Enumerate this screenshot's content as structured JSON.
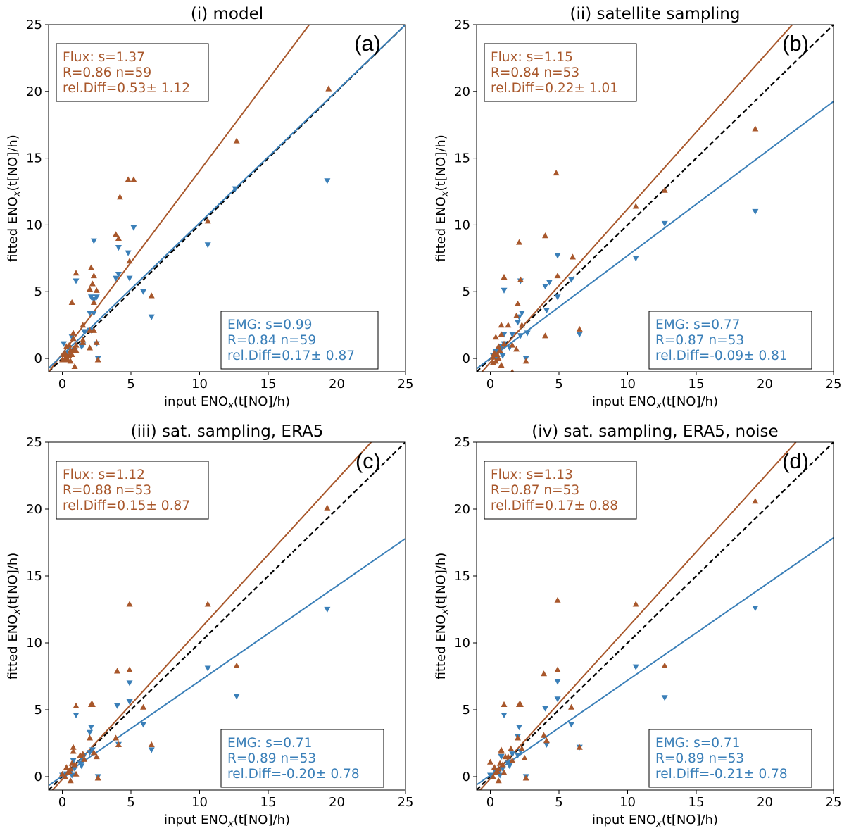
{
  "colors": {
    "flux": "#a8572b",
    "emg": "#3a7fb8",
    "identity": "#000000"
  },
  "chart_data": [
    {
      "type": "scatter",
      "letter": "(a)",
      "title": "(i) model",
      "xlabel": "input ENO",
      "xlabel_sub": "x",
      "xlabel_unit": "(t[NO]/h)",
      "ylabel": "fitted ENO",
      "ylabel_sub": "x",
      "ylabel_unit": "(t[NO]/h)",
      "xlim": [
        -1,
        25
      ],
      "ylim": [
        -1,
        25
      ],
      "xticks": [
        0,
        5,
        10,
        15,
        20,
        25
      ],
      "yticks": [
        0,
        5,
        10,
        15,
        20,
        25
      ],
      "grid": false,
      "flux": {
        "label_lines": [
          "Flux: s=1.37",
          "R=0.86 n=59",
          "rel.Diff=0.53± 1.12"
        ],
        "slope": 1.37,
        "intercept": 0.35,
        "points": [
          [
            19.4,
            20.2
          ],
          [
            12.7,
            16.3
          ],
          [
            4.8,
            13.4
          ],
          [
            5.2,
            13.4
          ],
          [
            4.2,
            12.1
          ],
          [
            10.6,
            10.3
          ],
          [
            3.9,
            9.3
          ],
          [
            4.1,
            9.0
          ],
          [
            4.9,
            7.3
          ],
          [
            2.1,
            6.8
          ],
          [
            1.0,
            6.4
          ],
          [
            2.3,
            6.2
          ],
          [
            2.2,
            5.6
          ],
          [
            2.5,
            5.1
          ],
          [
            2.0,
            5.2
          ],
          [
            0.7,
            4.2
          ],
          [
            2.3,
            4.2
          ],
          [
            6.5,
            4.7
          ],
          [
            1.5,
            2.5
          ],
          [
            2.0,
            2.1
          ],
          [
            2.3,
            2.1
          ],
          [
            2.5,
            1.2
          ],
          [
            2.0,
            0.8
          ],
          [
            0.8,
            1.9
          ],
          [
            0.8,
            1.5
          ],
          [
            1.5,
            1.4
          ],
          [
            1.5,
            1.2
          ],
          [
            0.5,
            1.0
          ],
          [
            0.3,
            0.9
          ],
          [
            0.6,
            0.6
          ],
          [
            0.8,
            0.6
          ],
          [
            1.0,
            0.6
          ],
          [
            0.7,
            0.3
          ],
          [
            0.1,
            0.3
          ],
          [
            0.2,
            0.0
          ],
          [
            0.3,
            0.1
          ],
          [
            0.0,
            -0.1
          ],
          [
            0.6,
            -0.2
          ],
          [
            0.9,
            -0.6
          ],
          [
            0.4,
            -0.1
          ],
          [
            2.6,
            -0.1
          ],
          [
            0.2,
            0.4
          ],
          [
            0.5,
            0.2
          ],
          [
            0.9,
            0.8
          ],
          [
            1.0,
            1.0
          ]
        ]
      },
      "emg": {
        "label_lines": [
          "EMG: s=0.99",
          "R=0.84 n=59",
          "rel.Diff=0.17± 0.87"
        ],
        "slope": 0.99,
        "intercept": 0.25,
        "points": [
          [
            19.3,
            13.3
          ],
          [
            12.6,
            12.7
          ],
          [
            10.6,
            8.5
          ],
          [
            5.2,
            9.8
          ],
          [
            2.3,
            8.8
          ],
          [
            4.1,
            8.3
          ],
          [
            4.8,
            7.9
          ],
          [
            1.0,
            5.8
          ],
          [
            3.9,
            6.0
          ],
          [
            4.1,
            6.3
          ],
          [
            4.9,
            6.0
          ],
          [
            5.9,
            5.0
          ],
          [
            6.5,
            3.1
          ],
          [
            2.1,
            4.6
          ],
          [
            2.5,
            4.6
          ],
          [
            2.3,
            4.4
          ],
          [
            2.0,
            3.4
          ],
          [
            2.3,
            3.4
          ],
          [
            1.6,
            2.0
          ],
          [
            2.0,
            2.1
          ],
          [
            2.1,
            2.1
          ],
          [
            1.5,
            1.0
          ],
          [
            1.4,
            0.9
          ],
          [
            2.5,
            1.1
          ],
          [
            0.7,
            1.6
          ],
          [
            0.1,
            1.1
          ],
          [
            0.5,
            0.8
          ],
          [
            0.9,
            0.6
          ],
          [
            0.3,
            0.4
          ],
          [
            0.2,
            0.2
          ],
          [
            2.6,
            0.0
          ],
          [
            0.6,
            0.3
          ]
        ]
      }
    },
    {
      "type": "scatter",
      "letter": "(b)",
      "title": "(ii) satellite sampling",
      "xlabel": "input ENO",
      "xlabel_sub": "x",
      "xlabel_unit": "(t[NO]/h)",
      "ylabel": "fitted ENO",
      "ylabel_sub": "x",
      "ylabel_unit": "(t[NO]/h)",
      "xlim": [
        -1,
        25
      ],
      "ylim": [
        -1,
        25
      ],
      "xticks": [
        0,
        5,
        10,
        15,
        20,
        25
      ],
      "yticks": [
        0,
        5,
        10,
        15,
        20,
        25
      ],
      "grid": false,
      "flux": {
        "label_lines": [
          "Flux: s=1.15",
          "R=0.84 n=53",
          "rel.Diff=0.22± 1.01"
        ],
        "slope": 1.15,
        "intercept": -0.3,
        "points": [
          [
            19.3,
            17.2
          ],
          [
            12.7,
            12.6
          ],
          [
            10.6,
            11.4
          ],
          [
            4.8,
            13.9
          ],
          [
            4.0,
            9.2
          ],
          [
            2.1,
            8.7
          ],
          [
            6.0,
            7.6
          ],
          [
            4.9,
            6.2
          ],
          [
            1.0,
            6.1
          ],
          [
            2.2,
            5.9
          ],
          [
            2.0,
            4.1
          ],
          [
            1.9,
            3.2
          ],
          [
            4.0,
            1.7
          ],
          [
            6.5,
            2.2
          ],
          [
            0.8,
            2.5
          ],
          [
            1.3,
            2.5
          ],
          [
            2.3,
            2.5
          ],
          [
            0.4,
            1.6
          ],
          [
            0.8,
            1.8
          ],
          [
            1.0,
            1.1
          ],
          [
            1.6,
            1.0
          ],
          [
            0.6,
            0.9
          ],
          [
            0.3,
            0.4
          ],
          [
            0.5,
            0.3
          ],
          [
            0.7,
            0.6
          ],
          [
            0.2,
            0.1
          ],
          [
            0.4,
            -0.2
          ],
          [
            0.8,
            -0.5
          ],
          [
            1.9,
            0.7
          ],
          [
            2.6,
            -0.2
          ],
          [
            1.6,
            -1.0
          ],
          [
            0.2,
            -0.3
          ],
          [
            0.6,
            0.0
          ]
        ]
      },
      "emg": {
        "label_lines": [
          "EMG: s=0.77",
          "R=0.87 n=53",
          "rel.Diff=-0.09± 0.81"
        ],
        "slope": 0.77,
        "intercept": 0.0,
        "points": [
          [
            19.3,
            11.0
          ],
          [
            12.7,
            10.1
          ],
          [
            10.6,
            7.5
          ],
          [
            4.9,
            7.7
          ],
          [
            5.9,
            5.9
          ],
          [
            4.0,
            5.4
          ],
          [
            4.3,
            5.7
          ],
          [
            2.2,
            5.8
          ],
          [
            1.0,
            5.1
          ],
          [
            4.9,
            4.6
          ],
          [
            4.1,
            3.6
          ],
          [
            2.1,
            3.1
          ],
          [
            2.3,
            3.4
          ],
          [
            2.0,
            2.7
          ],
          [
            1.6,
            1.8
          ],
          [
            1.0,
            1.8
          ],
          [
            2.2,
            1.7
          ],
          [
            2.7,
            1.9
          ],
          [
            1.0,
            1.1
          ],
          [
            1.4,
            0.8
          ],
          [
            0.8,
            0.9
          ],
          [
            0.6,
            0.6
          ],
          [
            0.4,
            0.5
          ],
          [
            0.9,
            0.2
          ],
          [
            0.2,
            0.2
          ],
          [
            0.5,
            0.0
          ],
          [
            2.6,
            0.0
          ],
          [
            6.5,
            1.8
          ]
        ]
      }
    },
    {
      "type": "scatter",
      "letter": "(c)",
      "title": "(iii) sat. sampling, ERA5",
      "xlabel": "input ENO",
      "xlabel_sub": "x",
      "xlabel_unit": "(t[NO]/h)",
      "ylabel": "fitted ENO",
      "ylabel_sub": "x",
      "ylabel_unit": "(t[NO]/h)",
      "xlim": [
        -1,
        25
      ],
      "ylim": [
        -1,
        25
      ],
      "xticks": [
        0,
        5,
        10,
        15,
        20,
        25
      ],
      "yticks": [
        0,
        5,
        10,
        15,
        20,
        25
      ],
      "grid": false,
      "flux": {
        "label_lines": [
          "Flux: s=1.12",
          "R=0.88 n=53",
          "rel.Diff=0.15± 0.87"
        ],
        "slope": 1.12,
        "intercept": -0.2,
        "points": [
          [
            19.3,
            20.1
          ],
          [
            10.6,
            12.9
          ],
          [
            4.9,
            12.9
          ],
          [
            4.0,
            7.9
          ],
          [
            4.9,
            8.0
          ],
          [
            12.7,
            8.3
          ],
          [
            1.0,
            5.3
          ],
          [
            2.1,
            5.4
          ],
          [
            2.2,
            5.4
          ],
          [
            5.9,
            5.2
          ],
          [
            3.9,
            2.9
          ],
          [
            4.1,
            2.4
          ],
          [
            6.5,
            2.4
          ],
          [
            2.0,
            2.9
          ],
          [
            1.5,
            1.7
          ],
          [
            2.3,
            1.8
          ],
          [
            0.8,
            1.9
          ],
          [
            0.8,
            2.2
          ],
          [
            1.3,
            1.6
          ],
          [
            0.7,
            1.0
          ],
          [
            0.9,
            0.9
          ],
          [
            0.6,
            0.6
          ],
          [
            0.4,
            0.3
          ],
          [
            0.3,
            0.7
          ],
          [
            0.5,
            0.4
          ],
          [
            0.2,
            0.0
          ],
          [
            0.0,
            0.2
          ],
          [
            0.6,
            -0.3
          ],
          [
            2.6,
            -0.1
          ],
          [
            1.6,
            1.3
          ],
          [
            1.0,
            0.2
          ],
          [
            2.5,
            1.5
          ]
        ]
      },
      "emg": {
        "label_lines": [
          "EMG: s=0.71",
          "R=0.89 n=53",
          "rel.Diff=-0.20± 0.78"
        ],
        "slope": 0.71,
        "intercept": 0.05,
        "points": [
          [
            19.3,
            12.5
          ],
          [
            10.6,
            8.1
          ],
          [
            4.9,
            7.0
          ],
          [
            12.7,
            6.0
          ],
          [
            4.0,
            5.3
          ],
          [
            4.9,
            5.6
          ],
          [
            1.0,
            4.6
          ],
          [
            2.1,
            3.7
          ],
          [
            2.0,
            3.3
          ],
          [
            5.9,
            3.9
          ],
          [
            6.5,
            2.0
          ],
          [
            4.1,
            2.4
          ],
          [
            2.2,
            2.0
          ],
          [
            2.0,
            1.8
          ],
          [
            1.6,
            1.6
          ],
          [
            1.5,
            1.2
          ],
          [
            0.8,
            1.2
          ],
          [
            1.3,
            1.0
          ],
          [
            0.9,
            0.6
          ],
          [
            0.6,
            0.3
          ],
          [
            0.3,
            0.2
          ],
          [
            0.0,
            0.1
          ],
          [
            2.6,
            0.0
          ],
          [
            1.4,
            0.8
          ],
          [
            0.7,
            0.1
          ]
        ]
      }
    },
    {
      "type": "scatter",
      "letter": "(d)",
      "title": "(iv) sat. sampling, ERA5, noise",
      "xlabel": "input ENO",
      "xlabel_sub": "x",
      "xlabel_unit": "(t[NO]/h)",
      "ylabel": "fitted ENO",
      "ylabel_sub": "x",
      "ylabel_unit": "(t[NO]/h)",
      "xlim": [
        -1,
        25
      ],
      "ylim": [
        -1,
        25
      ],
      "xticks": [
        0,
        5,
        10,
        15,
        20,
        25
      ],
      "yticks": [
        0,
        5,
        10,
        15,
        20,
        25
      ],
      "grid": false,
      "flux": {
        "label_lines": [
          "Flux: s=1.13",
          "R=0.87 n=53",
          "rel.Diff=0.17± 0.88"
        ],
        "slope": 1.13,
        "intercept": -0.15,
        "points": [
          [
            19.3,
            20.6
          ],
          [
            10.6,
            12.9
          ],
          [
            4.9,
            13.2
          ],
          [
            3.9,
            7.7
          ],
          [
            4.9,
            8.0
          ],
          [
            12.7,
            8.3
          ],
          [
            1.0,
            5.4
          ],
          [
            2.1,
            5.4
          ],
          [
            2.2,
            5.4
          ],
          [
            5.9,
            5.2
          ],
          [
            3.9,
            3.1
          ],
          [
            4.1,
            2.7
          ],
          [
            6.5,
            2.2
          ],
          [
            2.0,
            2.9
          ],
          [
            1.5,
            2.1
          ],
          [
            2.3,
            2.1
          ],
          [
            0.8,
            1.9
          ],
          [
            0.8,
            2.0
          ],
          [
            1.3,
            1.5
          ],
          [
            0.7,
            1.0
          ],
          [
            0.9,
            0.9
          ],
          [
            0.6,
            0.6
          ],
          [
            0.4,
            0.3
          ],
          [
            0.3,
            0.7
          ],
          [
            0.5,
            0.4
          ],
          [
            0.2,
            0.0
          ],
          [
            0.0,
            1.1
          ],
          [
            0.6,
            -0.3
          ],
          [
            2.6,
            -0.1
          ],
          [
            1.6,
            1.2
          ],
          [
            1.0,
            0.3
          ],
          [
            2.5,
            1.4
          ],
          [
            1.1,
            1.5
          ]
        ]
      },
      "emg": {
        "label_lines": [
          "EMG: s=0.71",
          "R=0.89 n=53",
          "rel.Diff=-0.21± 0.78"
        ],
        "slope": 0.71,
        "intercept": 0.1,
        "points": [
          [
            19.3,
            12.6
          ],
          [
            10.6,
            8.2
          ],
          [
            4.9,
            7.1
          ],
          [
            12.7,
            5.9
          ],
          [
            4.0,
            5.1
          ],
          [
            4.9,
            5.8
          ],
          [
            1.0,
            4.6
          ],
          [
            2.1,
            3.7
          ],
          [
            2.0,
            3.0
          ],
          [
            5.9,
            3.9
          ],
          [
            6.5,
            2.2
          ],
          [
            4.1,
            2.4
          ],
          [
            2.2,
            1.9
          ],
          [
            2.0,
            1.6
          ],
          [
            1.6,
            1.7
          ],
          [
            1.5,
            1.1
          ],
          [
            0.8,
            1.5
          ],
          [
            1.3,
            1.0
          ],
          [
            0.9,
            0.6
          ],
          [
            0.6,
            0.3
          ],
          [
            0.3,
            0.5
          ],
          [
            0.0,
            0.1
          ],
          [
            2.6,
            0.0
          ],
          [
            1.4,
            0.8
          ],
          [
            0.7,
            0.1
          ]
        ]
      }
    }
  ]
}
